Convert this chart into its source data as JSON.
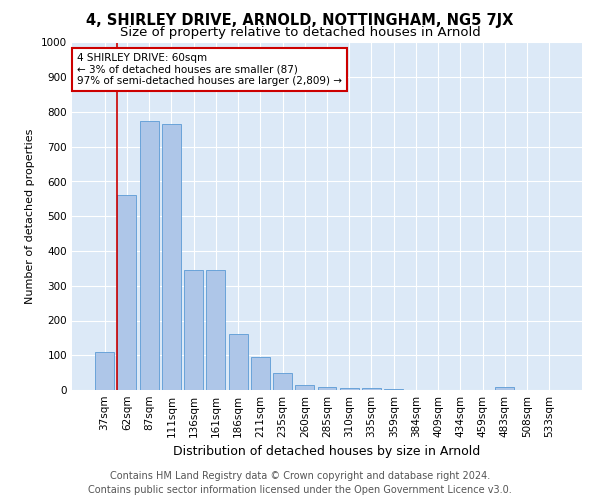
{
  "title": "4, SHIRLEY DRIVE, ARNOLD, NOTTINGHAM, NG5 7JX",
  "subtitle": "Size of property relative to detached houses in Arnold",
  "xlabel": "Distribution of detached houses by size in Arnold",
  "ylabel": "Number of detached properties",
  "categories": [
    "37sqm",
    "62sqm",
    "87sqm",
    "111sqm",
    "136sqm",
    "161sqm",
    "186sqm",
    "211sqm",
    "235sqm",
    "260sqm",
    "285sqm",
    "310sqm",
    "335sqm",
    "359sqm",
    "384sqm",
    "409sqm",
    "434sqm",
    "459sqm",
    "483sqm",
    "508sqm",
    "533sqm"
  ],
  "values": [
    110,
    560,
    775,
    765,
    345,
    345,
    160,
    95,
    50,
    15,
    10,
    5,
    5,
    2,
    1,
    0,
    0,
    1,
    10,
    0,
    0
  ],
  "bar_color": "#aec6e8",
  "bar_edge_color": "#5b9bd5",
  "highlight_index": 1,
  "highlight_line_color": "#cc0000",
  "ylim": [
    0,
    1000
  ],
  "yticks": [
    0,
    100,
    200,
    300,
    400,
    500,
    600,
    700,
    800,
    900,
    1000
  ],
  "annotation_text": "4 SHIRLEY DRIVE: 60sqm\n← 3% of detached houses are smaller (87)\n97% of semi-detached houses are larger (2,809) →",
  "annotation_box_color": "#ffffff",
  "annotation_box_edge": "#cc0000",
  "footer_line1": "Contains HM Land Registry data © Crown copyright and database right 2024.",
  "footer_line2": "Contains public sector information licensed under the Open Government Licence v3.0.",
  "bg_color": "#ffffff",
  "plot_bg_color": "#dce9f7",
  "grid_color": "#ffffff",
  "title_fontsize": 10.5,
  "subtitle_fontsize": 9.5,
  "xlabel_fontsize": 9,
  "ylabel_fontsize": 8,
  "tick_fontsize": 7.5,
  "annotation_fontsize": 7.5,
  "footer_fontsize": 7
}
